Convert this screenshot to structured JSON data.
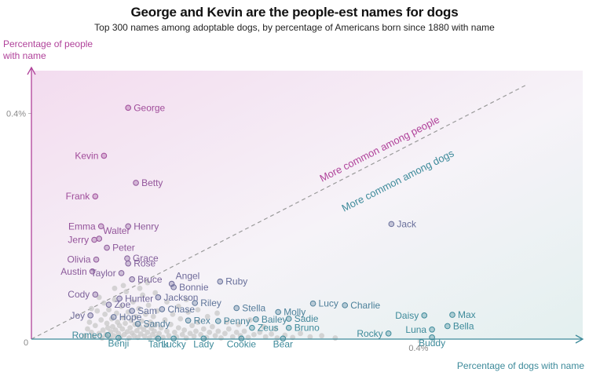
{
  "chart_data": {
    "type": "scatter",
    "title": "George and Kevin are the people-est names for dogs",
    "subtitle": "Top 300 names among adoptable dogs, by percentage of Americans born since 1880 with name",
    "xlabel": "Percentage of dogs with name",
    "ylabel": "Percentage of people with name",
    "xlim": [
      0,
      0.56
    ],
    "ylim": [
      0,
      0.48
    ],
    "origin_label": "0",
    "x_tick_label": "0.4%",
    "y_tick_label": "0.4%",
    "x_ticks": [
      0.4
    ],
    "y_ticks": [
      0.4
    ],
    "annotations": {
      "people": "More common among people",
      "dogs": "More common among dogs"
    },
    "colors": {
      "people": "#b0429a",
      "dogs": "#3d8a9a",
      "neutral": "#c8c8c8"
    },
    "labeled_points": [
      {
        "name": "George",
        "x": 0.1,
        "y": 0.41
      },
      {
        "name": "Kevin",
        "x": 0.075,
        "y": 0.325
      },
      {
        "name": "Betty",
        "x": 0.108,
        "y": 0.277
      },
      {
        "name": "Frank",
        "x": 0.066,
        "y": 0.253
      },
      {
        "name": "Emma",
        "x": 0.072,
        "y": 0.2
      },
      {
        "name": "Henry",
        "x": 0.1,
        "y": 0.2
      },
      {
        "name": "Walter",
        "x": 0.07,
        "y": 0.178
      },
      {
        "name": "Jerry",
        "x": 0.065,
        "y": 0.176
      },
      {
        "name": "Peter",
        "x": 0.078,
        "y": 0.162
      },
      {
        "name": "Olivia",
        "x": 0.067,
        "y": 0.141
      },
      {
        "name": "Grace",
        "x": 0.099,
        "y": 0.143
      },
      {
        "name": "Rose",
        "x": 0.1,
        "y": 0.134
      },
      {
        "name": "Austin",
        "x": 0.063,
        "y": 0.12
      },
      {
        "name": "Taylor",
        "x": 0.093,
        "y": 0.117
      },
      {
        "name": "Bruce",
        "x": 0.104,
        "y": 0.106
      },
      {
        "name": "Angel",
        "x": 0.145,
        "y": 0.098
      },
      {
        "name": "Bonnie",
        "x": 0.147,
        "y": 0.092
      },
      {
        "name": "Ruby",
        "x": 0.195,
        "y": 0.102
      },
      {
        "name": "Cody",
        "x": 0.066,
        "y": 0.079
      },
      {
        "name": "Hunter",
        "x": 0.091,
        "y": 0.072
      },
      {
        "name": "Jackson",
        "x": 0.131,
        "y": 0.074
      },
      {
        "name": "Stella",
        "x": 0.212,
        "y": 0.055
      },
      {
        "name": "Riley",
        "x": 0.169,
        "y": 0.064
      },
      {
        "name": "Chase",
        "x": 0.135,
        "y": 0.053
      },
      {
        "name": "Zoe",
        "x": 0.08,
        "y": 0.061
      },
      {
        "name": "Sam",
        "x": 0.104,
        "y": 0.05
      },
      {
        "name": "Joy",
        "x": 0.061,
        "y": 0.042
      },
      {
        "name": "Hope",
        "x": 0.085,
        "y": 0.039
      },
      {
        "name": "Sandy",
        "x": 0.11,
        "y": 0.027
      },
      {
        "name": "Rex",
        "x": 0.162,
        "y": 0.033
      },
      {
        "name": "Penny",
        "x": 0.193,
        "y": 0.032
      },
      {
        "name": "Molly",
        "x": 0.255,
        "y": 0.048
      },
      {
        "name": "Bailey",
        "x": 0.232,
        "y": 0.035
      },
      {
        "name": "Lucy",
        "x": 0.291,
        "y": 0.063
      },
      {
        "name": "Charlie",
        "x": 0.324,
        "y": 0.06
      },
      {
        "name": "Sadie",
        "x": 0.266,
        "y": 0.036
      },
      {
        "name": "Zeus",
        "x": 0.228,
        "y": 0.02
      },
      {
        "name": "Bruno",
        "x": 0.266,
        "y": 0.02
      },
      {
        "name": "Jack",
        "x": 0.372,
        "y": 0.204
      },
      {
        "name": "Daisy",
        "x": 0.406,
        "y": 0.042
      },
      {
        "name": "Max",
        "x": 0.435,
        "y": 0.043
      },
      {
        "name": "Luna",
        "x": 0.414,
        "y": 0.017
      },
      {
        "name": "Bella",
        "x": 0.43,
        "y": 0.023
      },
      {
        "name": "Rocky",
        "x": 0.369,
        "y": 0.01
      },
      {
        "name": "Buddy",
        "x": 0.414,
        "y": 0.003
      },
      {
        "name": "Romeo",
        "x": 0.079,
        "y": 0.007
      },
      {
        "name": "Benji",
        "x": 0.09,
        "y": 0.002
      },
      {
        "name": "Tank",
        "x": 0.131,
        "y": 0.001
      },
      {
        "name": "Lucky",
        "x": 0.147,
        "y": 0.001
      },
      {
        "name": "Lady",
        "x": 0.178,
        "y": 0.001
      },
      {
        "name": "Cookie",
        "x": 0.217,
        "y": 0.001
      },
      {
        "name": "Bear",
        "x": 0.26,
        "y": 0.001
      }
    ],
    "unlabeled_points": [
      [
        0.055,
        0.006
      ],
      [
        0.058,
        0.018
      ],
      [
        0.06,
        0.03
      ],
      [
        0.062,
        0.012
      ],
      [
        0.064,
        0.004
      ],
      [
        0.066,
        0.024
      ],
      [
        0.068,
        0.05
      ],
      [
        0.07,
        0.01
      ],
      [
        0.072,
        0.034
      ],
      [
        0.073,
        0.002
      ],
      [
        0.074,
        0.016
      ],
      [
        0.075,
        0.064
      ],
      [
        0.076,
        0.044
      ],
      [
        0.077,
        0.008
      ],
      [
        0.078,
        0.028
      ],
      [
        0.079,
        0.02
      ],
      [
        0.08,
        0.052
      ],
      [
        0.081,
        0.003
      ],
      [
        0.082,
        0.013
      ],
      [
        0.083,
        0.036
      ],
      [
        0.084,
        0.022
      ],
      [
        0.085,
        0.006
      ],
      [
        0.086,
        0.07
      ],
      [
        0.087,
        0.016
      ],
      [
        0.088,
        0.046
      ],
      [
        0.089,
        0.03
      ],
      [
        0.09,
        0.01
      ],
      [
        0.091,
        0.024
      ],
      [
        0.092,
        0.004
      ],
      [
        0.093,
        0.058
      ],
      [
        0.094,
        0.018
      ],
      [
        0.095,
        0.038
      ],
      [
        0.096,
        0.008
      ],
      [
        0.097,
        0.028
      ],
      [
        0.098,
        0.084
      ],
      [
        0.099,
        0.013
      ],
      [
        0.1,
        0.048
      ],
      [
        0.101,
        0.002
      ],
      [
        0.102,
        0.02
      ],
      [
        0.103,
        0.033
      ],
      [
        0.104,
        0.011
      ],
      [
        0.105,
        0.066
      ],
      [
        0.106,
        0.006
      ],
      [
        0.107,
        0.026
      ],
      [
        0.108,
        0.04
      ],
      [
        0.109,
        0.015
      ],
      [
        0.11,
        0.003
      ],
      [
        0.111,
        0.054
      ],
      [
        0.112,
        0.022
      ],
      [
        0.113,
        0.009
      ],
      [
        0.114,
        0.032
      ],
      [
        0.115,
        0.078
      ],
      [
        0.116,
        0.017
      ],
      [
        0.117,
        0.005
      ],
      [
        0.118,
        0.044
      ],
      [
        0.119,
        0.024
      ],
      [
        0.12,
        0.012
      ],
      [
        0.121,
        0.06
      ],
      [
        0.122,
        0.002
      ],
      [
        0.123,
        0.03
      ],
      [
        0.124,
        0.019
      ],
      [
        0.125,
        0.008
      ],
      [
        0.126,
        0.04
      ],
      [
        0.127,
        0.014
      ],
      [
        0.128,
        0.025
      ],
      [
        0.129,
        0.004
      ],
      [
        0.13,
        0.05
      ],
      [
        0.132,
        0.01
      ],
      [
        0.134,
        0.02
      ],
      [
        0.136,
        0.003
      ],
      [
        0.138,
        0.034
      ],
      [
        0.14,
        0.014
      ],
      [
        0.142,
        0.006
      ],
      [
        0.144,
        0.026
      ],
      [
        0.146,
        0.044
      ],
      [
        0.148,
        0.012
      ],
      [
        0.15,
        0.004
      ],
      [
        0.152,
        0.02
      ],
      [
        0.154,
        0.036
      ],
      [
        0.156,
        0.008
      ],
      [
        0.158,
        0.016
      ],
      [
        0.16,
        0.002
      ],
      [
        0.162,
        0.048
      ],
      [
        0.164,
        0.01
      ],
      [
        0.166,
        0.024
      ],
      [
        0.168,
        0.005
      ],
      [
        0.17,
        0.014
      ],
      [
        0.172,
        0.03
      ],
      [
        0.175,
        0.008
      ],
      [
        0.178,
        0.018
      ],
      [
        0.181,
        0.003
      ],
      [
        0.184,
        0.012
      ],
      [
        0.187,
        0.022
      ],
      [
        0.19,
        0.006
      ],
      [
        0.193,
        0.014
      ],
      [
        0.196,
        0.002
      ],
      [
        0.2,
        0.01
      ],
      [
        0.204,
        0.018
      ],
      [
        0.208,
        0.004
      ],
      [
        0.212,
        0.012
      ],
      [
        0.216,
        0.006
      ],
      [
        0.22,
        0.014
      ],
      [
        0.224,
        0.003
      ],
      [
        0.23,
        0.008
      ],
      [
        0.236,
        0.012
      ],
      [
        0.242,
        0.004
      ],
      [
        0.248,
        0.009
      ],
      [
        0.254,
        0.002
      ],
      [
        0.262,
        0.007
      ],
      [
        0.27,
        0.003
      ],
      [
        0.278,
        0.01
      ],
      [
        0.288,
        0.004
      ],
      [
        0.3,
        0.006
      ],
      [
        0.314,
        0.002
      ],
      [
        0.062,
        0.054
      ],
      [
        0.07,
        0.074
      ],
      [
        0.086,
        0.09
      ],
      [
        0.095,
        0.095
      ],
      [
        0.112,
        0.09
      ],
      [
        0.12,
        0.1
      ],
      [
        0.128,
        0.082
      ],
      [
        0.14,
        0.066
      ],
      [
        0.152,
        0.058
      ],
      [
        0.16,
        0.07
      ],
      [
        0.172,
        0.052
      ],
      [
        0.182,
        0.04
      ],
      [
        0.192,
        0.046
      ],
      [
        0.202,
        0.03
      ],
      [
        0.214,
        0.026
      ],
      [
        0.226,
        0.034
      ],
      [
        0.24,
        0.022
      ],
      [
        0.252,
        0.018
      ]
    ]
  }
}
